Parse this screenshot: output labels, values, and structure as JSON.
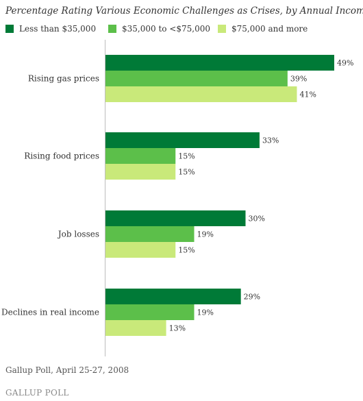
{
  "chart_data": {
    "type": "bar",
    "orientation": "horizontal",
    "title": "Percentage Rating Various Economic Challenges as Crises, by Annual Income",
    "categories": [
      "Rising gas prices",
      "Rising food prices",
      "Job losses",
      "Declines in real income"
    ],
    "series": [
      {
        "name": "Less than $35,000",
        "color": "#007a37",
        "values": [
          49,
          33,
          30,
          29
        ]
      },
      {
        "name": "$35,000 to <$75,000",
        "color": "#5cbf4a",
        "values": [
          39,
          15,
          19,
          19
        ]
      },
      {
        "name": "$75,000 and more",
        "color": "#c9e97a",
        "values": [
          41,
          15,
          15,
          13
        ]
      }
    ],
    "value_suffix": "%",
    "xlim": [
      0,
      50
    ],
    "grid": false,
    "legend_position": "top"
  },
  "footer": {
    "source": "Gallup Poll, April 25-27, 2008",
    "brand": "GALLUP POLL"
  }
}
